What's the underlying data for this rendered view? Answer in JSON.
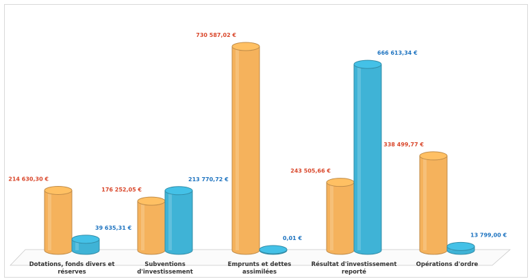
{
  "chart_data": {
    "type": "bar",
    "style": "3d-cylinder",
    "categories": [
      [
        "Dotations, fonds divers et",
        "réserves"
      ],
      [
        "Subventions",
        "d'investissement"
      ],
      [
        "Emprunts et dettes",
        "assimilées"
      ],
      [
        "Résultat d'investissement",
        "reporté"
      ],
      [
        "Opérations d'ordre"
      ]
    ],
    "series": [
      {
        "color": "#f5b25c",
        "label_color": "#d9472b",
        "values": [
          214630.3,
          176252.05,
          730587.02,
          243505.66,
          338499.77
        ],
        "labels": [
          "214 630,30 €",
          "176 252,05 €",
          "730 587,02 €",
          "243 505,66 €",
          "338 499,77 €"
        ]
      },
      {
        "color": "#3fb3d6",
        "label_color": "#1f74c0",
        "values": [
          39635.31,
          213770.72,
          0.01,
          666613.34,
          13799.0
        ],
        "labels": [
          "39 635,31 €",
          "213 770,72 €",
          "0,01 €",
          "666 613,34 €",
          "13 799,00 €"
        ]
      }
    ],
    "ylim": [
      0,
      730587.02
    ],
    "grid": false,
    "legend": "none"
  }
}
